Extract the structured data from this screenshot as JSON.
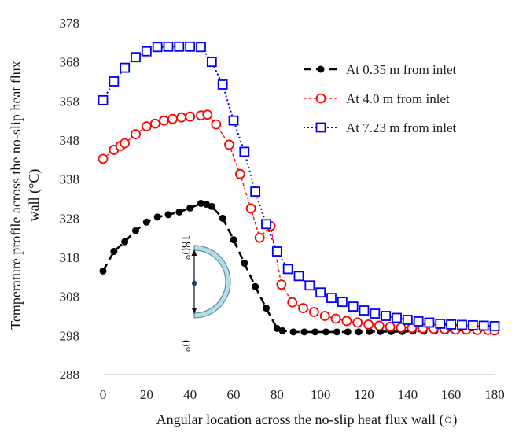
{
  "chart_data": {
    "type": "line",
    "xlabel": "Angular location across the no-slip heat flux wall (○)",
    "ylabel_line1": "Temperature  profile  across the  no-slip  heat flux",
    "ylabel_line2": "wall (°C)",
    "xlim": [
      0,
      180
    ],
    "ylim": [
      288,
      378
    ],
    "xticks": [
      0,
      20,
      40,
      60,
      80,
      100,
      120,
      140,
      160,
      180
    ],
    "yticks": [
      288,
      298,
      308,
      318,
      328,
      338,
      348,
      358,
      368,
      378
    ],
    "grid": false,
    "legend_position": "top-right",
    "series": [
      {
        "name": "At 0.35 m from inlet",
        "color": "#000000",
        "line_style": "long-dash",
        "marker": "filled-circle",
        "x": [
          0,
          5,
          10,
          15,
          20,
          25,
          30,
          35,
          40,
          45,
          47.5,
          50,
          55,
          60,
          65,
          70,
          75,
          80,
          82.5,
          87.5,
          92.5,
          97.5,
          102.5,
          107.5,
          112.5,
          117.5,
          122.5,
          127.5,
          132.5,
          137.5,
          142.5,
          147.5,
          152.5,
          157.5,
          162.5,
          167.5,
          172.5,
          177.5,
          180
        ],
        "y": [
          314.5,
          319.5,
          322,
          324.8,
          327,
          328.3,
          328.9,
          329.6,
          330.6,
          331.8,
          331.6,
          331,
          328,
          322.5,
          316.5,
          310.5,
          305,
          299.8,
          299.2,
          298.9,
          298.9,
          298.9,
          298.9,
          298.9,
          298.9,
          298.9,
          299,
          299,
          299,
          299,
          299.1,
          299.1,
          299.2,
          299.2,
          299.3,
          299.3,
          299.4,
          299.4,
          299.5
        ]
      },
      {
        "name": "At 4.0 m from inlet",
        "color": "#ff0000",
        "line_style": "dash",
        "marker": "open-circle",
        "x": [
          0,
          5,
          8,
          10,
          15,
          20,
          24,
          28,
          32,
          36,
          40,
          45,
          48,
          52,
          58,
          63,
          68,
          72,
          77,
          82,
          87,
          92,
          97,
          102,
          107,
          112,
          117,
          122,
          127,
          132,
          137,
          142,
          147,
          152,
          157,
          162,
          167,
          172,
          177,
          180
        ],
        "y": [
          343.2,
          345.5,
          346.5,
          347.2,
          349.5,
          351.5,
          352.2,
          353,
          353.4,
          353.8,
          354,
          354.3,
          354.5,
          352,
          346.8,
          339.3,
          330.5,
          323,
          326,
          311,
          306.5,
          305,
          304,
          303,
          302.3,
          301.7,
          301.3,
          300.8,
          300.5,
          300.2,
          300,
          299.9,
          299.8,
          299.7,
          299.6,
          299.5,
          299.5,
          299.4,
          299.4,
          299.3
        ]
      },
      {
        "name": "At 7.23 m from inlet",
        "color": "#0000ff",
        "line_style": "dot",
        "marker": "open-square",
        "x": [
          0,
          5,
          10,
          15,
          20,
          25,
          30,
          35,
          40,
          45,
          50,
          55,
          60,
          65,
          70,
          75,
          80,
          85,
          90,
          95,
          100,
          105,
          110,
          115,
          120,
          125,
          130,
          135,
          140,
          145,
          150,
          155,
          160,
          165,
          170,
          175,
          180
        ],
        "y": [
          358.2,
          363,
          366.5,
          369.2,
          370.7,
          371.8,
          371.9,
          371.9,
          371.9,
          371.8,
          368,
          362.2,
          353,
          345,
          334.8,
          326.5,
          319.5,
          315,
          313.2,
          310.8,
          309,
          307.6,
          306.6,
          305.4,
          304.4,
          303.6,
          303,
          302.5,
          302,
          301.6,
          301.3,
          301,
          300.8,
          300.7,
          300.6,
          300.5,
          300.4
        ]
      }
    ]
  },
  "inset": {
    "top_label": "180°",
    "bottom_label": "0°"
  }
}
